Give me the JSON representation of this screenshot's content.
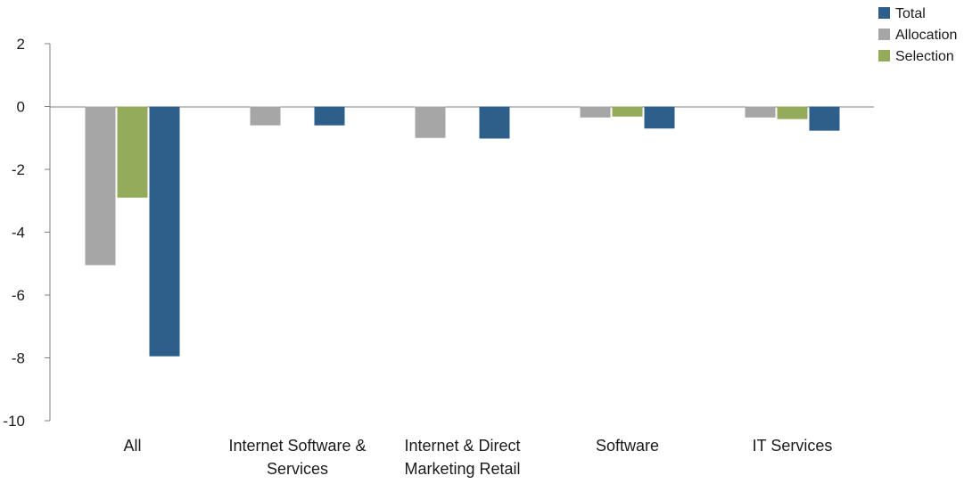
{
  "chart_data": {
    "type": "bar",
    "categories": [
      [
        "All"
      ],
      [
        "Internet Software &",
        "Services"
      ],
      [
        "Internet & Direct",
        "Marketing Retail"
      ],
      [
        "Software"
      ],
      [
        "IT Services"
      ]
    ],
    "series": [
      {
        "name": "Allocation",
        "color": "#a6a6a6",
        "values": [
          -5.05,
          -0.6,
          -1.0,
          -0.35,
          -0.35
        ]
      },
      {
        "name": "Selection",
        "color": "#93ab5b",
        "values": [
          -2.9,
          0,
          0,
          -0.32,
          -0.4
        ]
      },
      {
        "name": "Total",
        "color": "#2d5f8a",
        "values": [
          -7.95,
          -0.6,
          -1.02,
          -0.7,
          -0.77
        ]
      }
    ],
    "legend_order": [
      "Total",
      "Allocation",
      "Selection"
    ],
    "legend_position": "top-right",
    "ylim": [
      -10,
      2
    ],
    "yticks": [
      2,
      0,
      -2,
      -4,
      -6,
      -8,
      -10
    ],
    "title": "",
    "xlabel": "",
    "ylabel": "",
    "grid": false
  }
}
